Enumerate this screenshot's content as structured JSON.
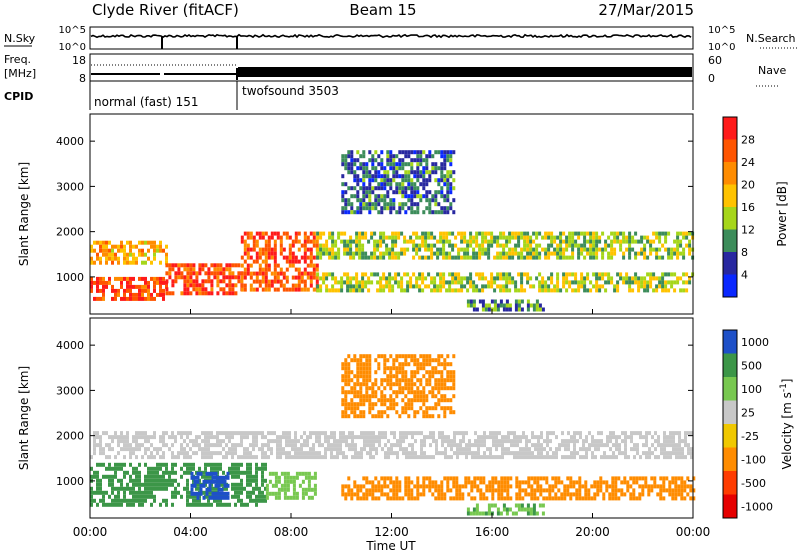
{
  "header": {
    "station": "Clyde River (fitACF)",
    "beam": "Beam 15",
    "date": "27/Mar/2015"
  },
  "top_panels": {
    "nsky": {
      "label": "N.Sky",
      "y_ticks": [
        "10^5",
        "10^0"
      ],
      "right_label": "N.Search",
      "right_ticks": [
        "10^5",
        "10^0"
      ]
    },
    "freq": {
      "label_line1": "Freq.",
      "label_line2": "[MHz]",
      "y_ticks": [
        "18",
        "8"
      ],
      "right_label": "Nave",
      "right_ticks": [
        "60",
        "0"
      ]
    },
    "cpid": {
      "label": "CPID",
      "segments": [
        {
          "name": "normal (fast) 151",
          "start_hour": 0,
          "end_hour": 6
        },
        {
          "name": "twofsound 3503",
          "start_hour": 6,
          "end_hour": 24
        }
      ]
    }
  },
  "colorbars": {
    "power": {
      "label": "Power [dB]",
      "ticks": [
        "28",
        "24",
        "20",
        "16",
        "12",
        "8",
        "4"
      ],
      "colors": [
        "#ff1a1a",
        "#ff5500",
        "#ff8c00",
        "#ffc300",
        "#a6d61a",
        "#3c8c5a",
        "#2828a0",
        "#0a28ff"
      ]
    },
    "velocity": {
      "label": "Velocity [m s",
      "label_sup": "-1",
      "label_end": "]",
      "ticks": [
        "1000",
        "500",
        "100",
        "25",
        "-25",
        "-100",
        "-500",
        "-1000"
      ],
      "colors": [
        "#1e50c8",
        "#3c9648",
        "#78c850",
        "#c8c8c8",
        "#f0c800",
        "#ff8c00",
        "#ff3c00",
        "#e60000"
      ]
    }
  },
  "chart_data": [
    {
      "type": "heatmap",
      "title": "",
      "quantity": "Power [dB]",
      "xlabel": "Time UT",
      "ylabel": "Slant Range [km]",
      "x_ticks": [
        "00:00",
        "04:00",
        "08:00",
        "12:00",
        "16:00",
        "20:00",
        "00:00"
      ],
      "y_ticks": [
        1000,
        2000,
        3000,
        4000
      ],
      "xlim_hours": [
        0,
        24
      ],
      "ylim_km": [
        180,
        4600
      ],
      "regions": [
        {
          "start_hour": 0.0,
          "end_hour": 3.0,
          "range_km": [
            500,
            1000
          ],
          "value_db": 28
        },
        {
          "start_hour": 0.0,
          "end_hour": 3.0,
          "range_km": [
            1300,
            1800
          ],
          "value_db": 20
        },
        {
          "start_hour": 3.0,
          "end_hour": 6.0,
          "range_km": [
            600,
            1300
          ],
          "value_db": 27
        },
        {
          "start_hour": 6.0,
          "end_hour": 9.0,
          "range_km": [
            700,
            2000
          ],
          "value_db": 26
        },
        {
          "start_hour": 9.0,
          "end_hour": 24.0,
          "range_km": [
            1400,
            2000
          ],
          "value_db": 14
        },
        {
          "start_hour": 9.0,
          "end_hour": 24.0,
          "range_km": [
            700,
            1100
          ],
          "value_db": 15
        },
        {
          "start_hour": 10.0,
          "end_hour": 14.5,
          "range_km": [
            2400,
            3800
          ],
          "value_db": 8
        },
        {
          "start_hour": 15.0,
          "end_hour": 18.0,
          "range_km": [
            250,
            500
          ],
          "value_db": 10
        }
      ]
    },
    {
      "type": "heatmap",
      "title": "",
      "quantity": "Velocity [m s-1]",
      "xlabel": "Time UT",
      "ylabel": "Slant Range [km]",
      "x_ticks": [
        "00:00",
        "04:00",
        "08:00",
        "12:00",
        "16:00",
        "20:00",
        "00:00"
      ],
      "y_ticks": [
        1000,
        2000,
        3000,
        4000
      ],
      "xlim_hours": [
        0,
        24
      ],
      "ylim_km": [
        180,
        4600
      ],
      "regions": [
        {
          "start_hour": 0.0,
          "end_hour": 7.0,
          "range_km": [
            500,
            1400
          ],
          "value_ms": 300
        },
        {
          "start_hour": 0.0,
          "end_hour": 24.0,
          "range_km": [
            1500,
            2100
          ],
          "value_ms": 0
        },
        {
          "start_hour": 4.0,
          "end_hour": 5.5,
          "range_km": [
            600,
            1200
          ],
          "value_ms": 900
        },
        {
          "start_hour": 7.0,
          "end_hour": 9.0,
          "range_km": [
            600,
            1200
          ],
          "value_ms": 60
        },
        {
          "start_hour": 10.0,
          "end_hour": 24.0,
          "range_km": [
            600,
            1100
          ],
          "value_ms": -200
        },
        {
          "start_hour": 10.0,
          "end_hour": 14.5,
          "range_km": [
            2400,
            3800
          ],
          "value_ms": -300
        },
        {
          "start_hour": 15.0,
          "end_hour": 18.0,
          "range_km": [
            250,
            500
          ],
          "value_ms": 80
        }
      ]
    }
  ]
}
